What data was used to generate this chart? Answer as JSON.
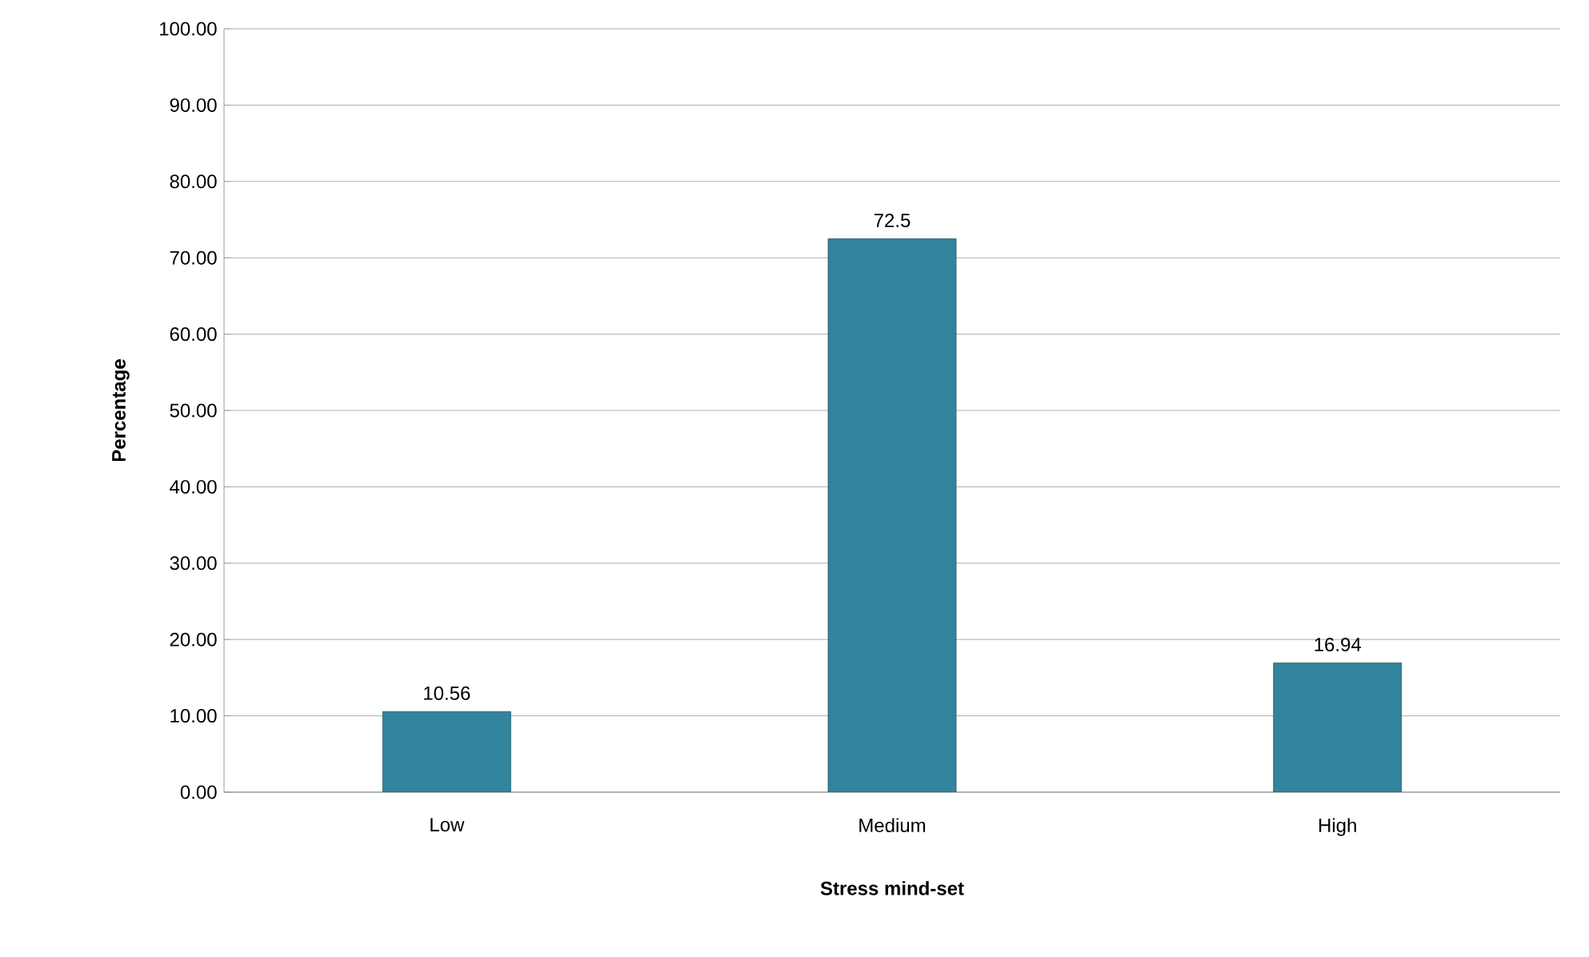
{
  "chart_data": {
    "type": "bar",
    "xlabel": "Stress mind-set",
    "ylabel": "Percentage",
    "categories": [
      "Low",
      "Medium",
      "High"
    ],
    "values": [
      10.56,
      72.5,
      16.94
    ],
    "color": "#31849b",
    "ylim": [
      0,
      100
    ],
    "yticks": [
      {
        "value": 0,
        "label": "0.00"
      },
      {
        "value": 10,
        "label": "10.00"
      },
      {
        "value": 20,
        "label": "20.00"
      },
      {
        "value": 30,
        "label": "30.00"
      },
      {
        "value": 40,
        "label": "40.00"
      },
      {
        "value": 50,
        "label": "50.00"
      },
      {
        "value": 60,
        "label": "60.00"
      },
      {
        "value": 70,
        "label": "70.00"
      },
      {
        "value": 80,
        "label": "80.00"
      },
      {
        "value": 90,
        "label": "90.00"
      },
      {
        "value": 100,
        "label": "100.00"
      }
    ],
    "grid": "y",
    "data_labels": true
  }
}
